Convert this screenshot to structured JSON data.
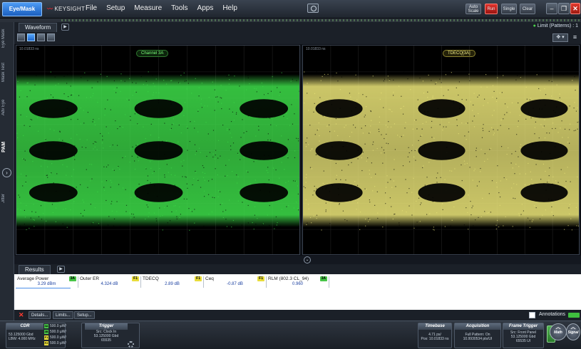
{
  "menubar": {
    "app_button": "Eye/Mask",
    "brand": "KEYSIGHT",
    "items": [
      "File",
      "Setup",
      "Measure",
      "Tools",
      "Apps",
      "Help"
    ],
    "auto_scale": "Auto Scale",
    "run": "Run",
    "single": "Single",
    "clear": "Clear"
  },
  "sidetabs": [
    "Eye Mask",
    "Mask Test",
    "Adv Eye",
    "PAM",
    "Jitter"
  ],
  "waveform": {
    "tab": "Waveform",
    "limit_status": "Limit (Patterns) : 1",
    "panes": [
      {
        "label": "Channel 3A",
        "time": "10.01833 ns",
        "color": "#3ee04a"
      },
      {
        "label": "TDECQ[3A]",
        "time": "10.01833 ns",
        "color": "#efe97a"
      }
    ]
  },
  "results": {
    "tab": "Results",
    "cells": [
      {
        "name": "Average Power",
        "badge": "3A",
        "value": "3.29 dBm",
        "badge_color": "green"
      },
      {
        "name": "Outer ER",
        "badge": "F1",
        "value": "4.324 dB",
        "badge_color": "yellow"
      },
      {
        "name": "TDECQ",
        "badge": "F1",
        "value": "2.89 dB",
        "badge_color": "yellow"
      },
      {
        "name": "Ceq",
        "badge": "F1",
        "value": "-0.87 dB",
        "badge_color": "yellow"
      },
      {
        "name": "RLM (802.3 CL_94)",
        "badge": "3A",
        "value": "0.960",
        "badge_color": "green"
      }
    ],
    "actions": [
      "Details...",
      "Limits...",
      "Setup..."
    ],
    "annotations": "Annotations"
  },
  "statusbar": {
    "cdr": {
      "title": "CDR",
      "lines": [
        "53.125000 Gbd",
        "LBW: 4.000 MHz"
      ]
    },
    "channels": [
      {
        "chip": "3A",
        "text": "500.0 µW/"
      },
      {
        "chip": "3B",
        "text": "500.0 µW/"
      },
      {
        "chip": "F1",
        "text": "500.0 µW/"
      },
      {
        "chip": "F2",
        "text": "500.0 µW/"
      }
    ],
    "trigger": {
      "title": "Trigger",
      "lines": [
        "Src: Clock In",
        "53.125000 Gbd",
        "65535"
      ]
    },
    "timebase": {
      "title": "Timebase",
      "lines": [
        "4.71 ps/",
        "Pos: 10.01833 ns"
      ]
    },
    "acquisition": {
      "title": "Acquisition",
      "lines": [
        "Full Pattern: On",
        "10.9930534 pts/UI"
      ]
    },
    "frame_trigger": {
      "title": "Frame Trigger",
      "lines": [
        "Src: Front Panel",
        "53.125000 Gbd",
        "65535 UI"
      ]
    },
    "math": "Math",
    "signal": "Signal"
  }
}
